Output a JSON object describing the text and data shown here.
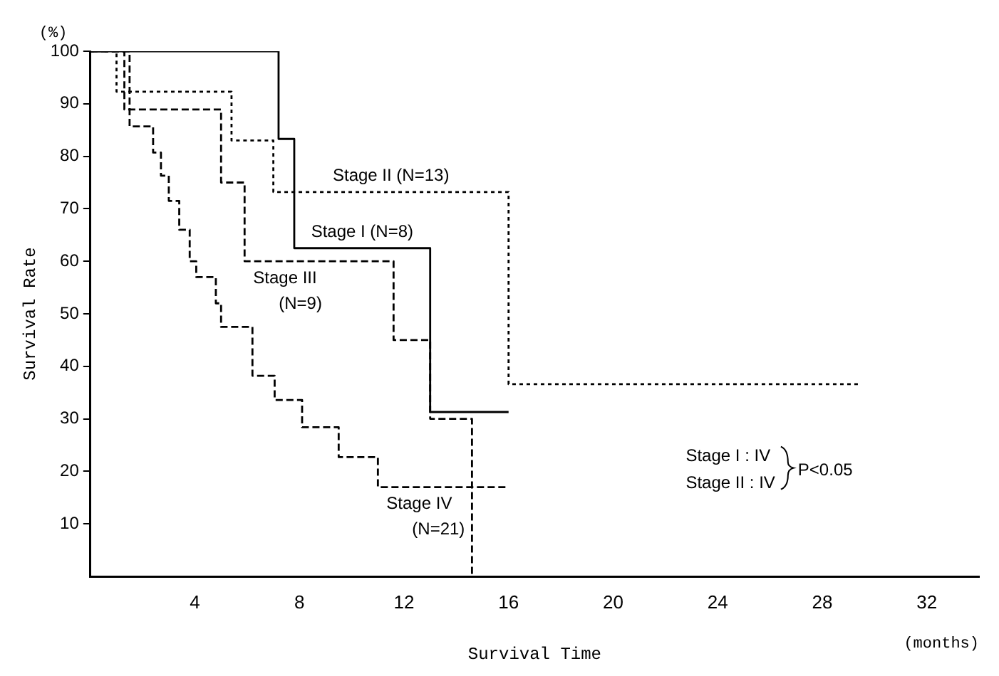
{
  "chart_data": {
    "type": "step",
    "xlabel": "Survival Time",
    "ylabel": "Survival Rate",
    "annotations": [
      "(%)",
      "(months)",
      "Stage I : IV",
      "Stage II : IV",
      "P<0.05"
    ],
    "xlim": [
      0,
      34
    ],
    "xticks": [
      4,
      8,
      12,
      16,
      20,
      24,
      28,
      32
    ],
    "ylim": [
      0,
      100
    ],
    "yticks": [
      10,
      20,
      30,
      40,
      50,
      60,
      70,
      80,
      90,
      100
    ],
    "grid": false,
    "legend": false,
    "marker": "none",
    "series": [
      {
        "name": "Stage I (N=8)",
        "color": "#000000",
        "line_style": "solid",
        "x": [
          0,
          7.2,
          7.8,
          13,
          16
        ],
        "values": [
          100,
          83.3,
          62.5,
          31.3,
          31.3
        ]
      },
      {
        "name": "Stage II (N=13)",
        "color": "#000000",
        "line_style": "dotted",
        "x": [
          0,
          1,
          5.4,
          7,
          16,
          29.5
        ],
        "values": [
          100,
          92.3,
          83,
          73.2,
          36.6,
          36.6
        ]
      },
      {
        "name": "Stage III (N=9)",
        "color": "#000000",
        "line_style": "dashed",
        "x": [
          0,
          1.3,
          5,
          5.9,
          11.6,
          13,
          14.6
        ],
        "values": [
          100,
          88.9,
          75,
          60,
          45,
          30,
          0
        ]
      },
      {
        "name": "Stage IV (N=21)",
        "color": "#000000",
        "line_style": "dashed",
        "x": [
          0,
          1.5,
          2.4,
          2.7,
          3,
          3.4,
          3.8,
          4.05,
          4.8,
          5,
          6.2,
          7.05,
          8.1,
          9.5,
          11,
          16
        ],
        "values": [
          100,
          85.7,
          80.7,
          76.3,
          71.5,
          66,
          60,
          57,
          52,
          47.5,
          38.2,
          33.6,
          28.4,
          22.7,
          17,
          17
        ]
      }
    ]
  }
}
